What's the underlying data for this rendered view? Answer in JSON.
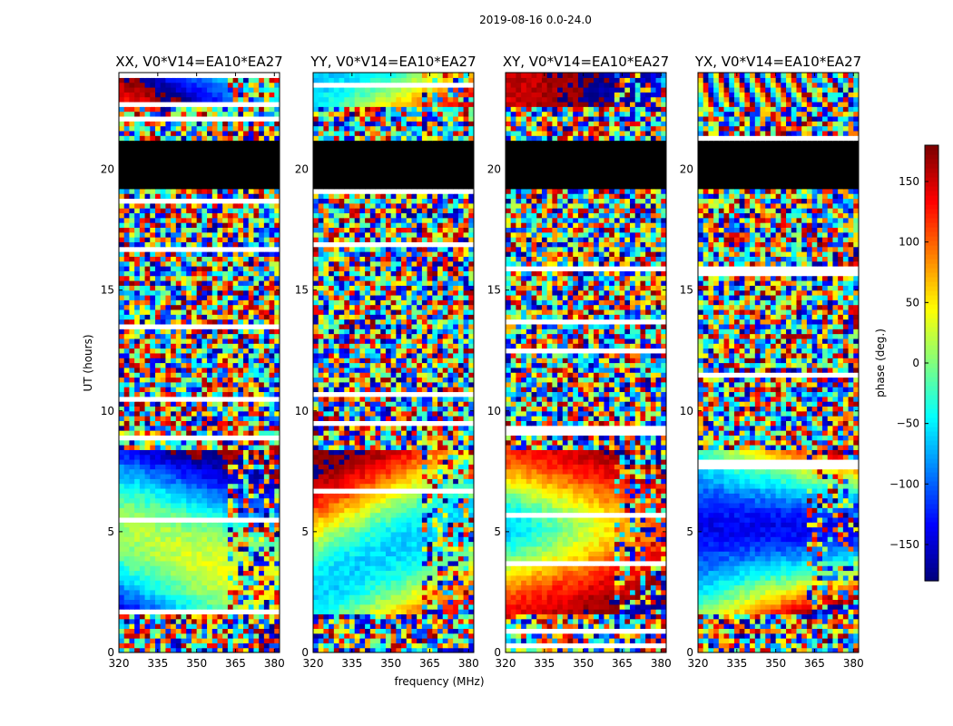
{
  "chart_data": {
    "type": "heatmap",
    "title": "2019-08-16 0.0-24.0",
    "xlabel": "frequency (MHz)",
    "ylabel": "UT (hours)",
    "xlim": [
      320,
      382
    ],
    "ylim": [
      0,
      24
    ],
    "xticks": [
      320,
      335,
      350,
      365,
      380
    ],
    "yticks": [
      0,
      5,
      10,
      15,
      20
    ],
    "panels": [
      {
        "title": "XX, V0*V14=EA10*EA27",
        "pol": "XX"
      },
      {
        "title": "YY, V0*V14=EA10*EA27",
        "pol": "YY"
      },
      {
        "title": "XY, V0*V14=EA10*EA27",
        "pol": "XY"
      },
      {
        "title": "YX, V0*V14=EA10*EA27",
        "pol": "YX"
      }
    ],
    "colorbar": {
      "label": "phase (deg.)",
      "range": [
        -180,
        180
      ],
      "ticks": [
        -150,
        -100,
        -50,
        0,
        50,
        100,
        150
      ],
      "tick_labels": [
        "−150",
        "−100",
        "−50",
        "0",
        "50",
        "100",
        "150"
      ],
      "colormap": "jet"
    },
    "flagged_ut_ranges": [
      [
        19.3,
        20.6
      ],
      [
        20.6,
        21.2
      ]
    ]
  }
}
